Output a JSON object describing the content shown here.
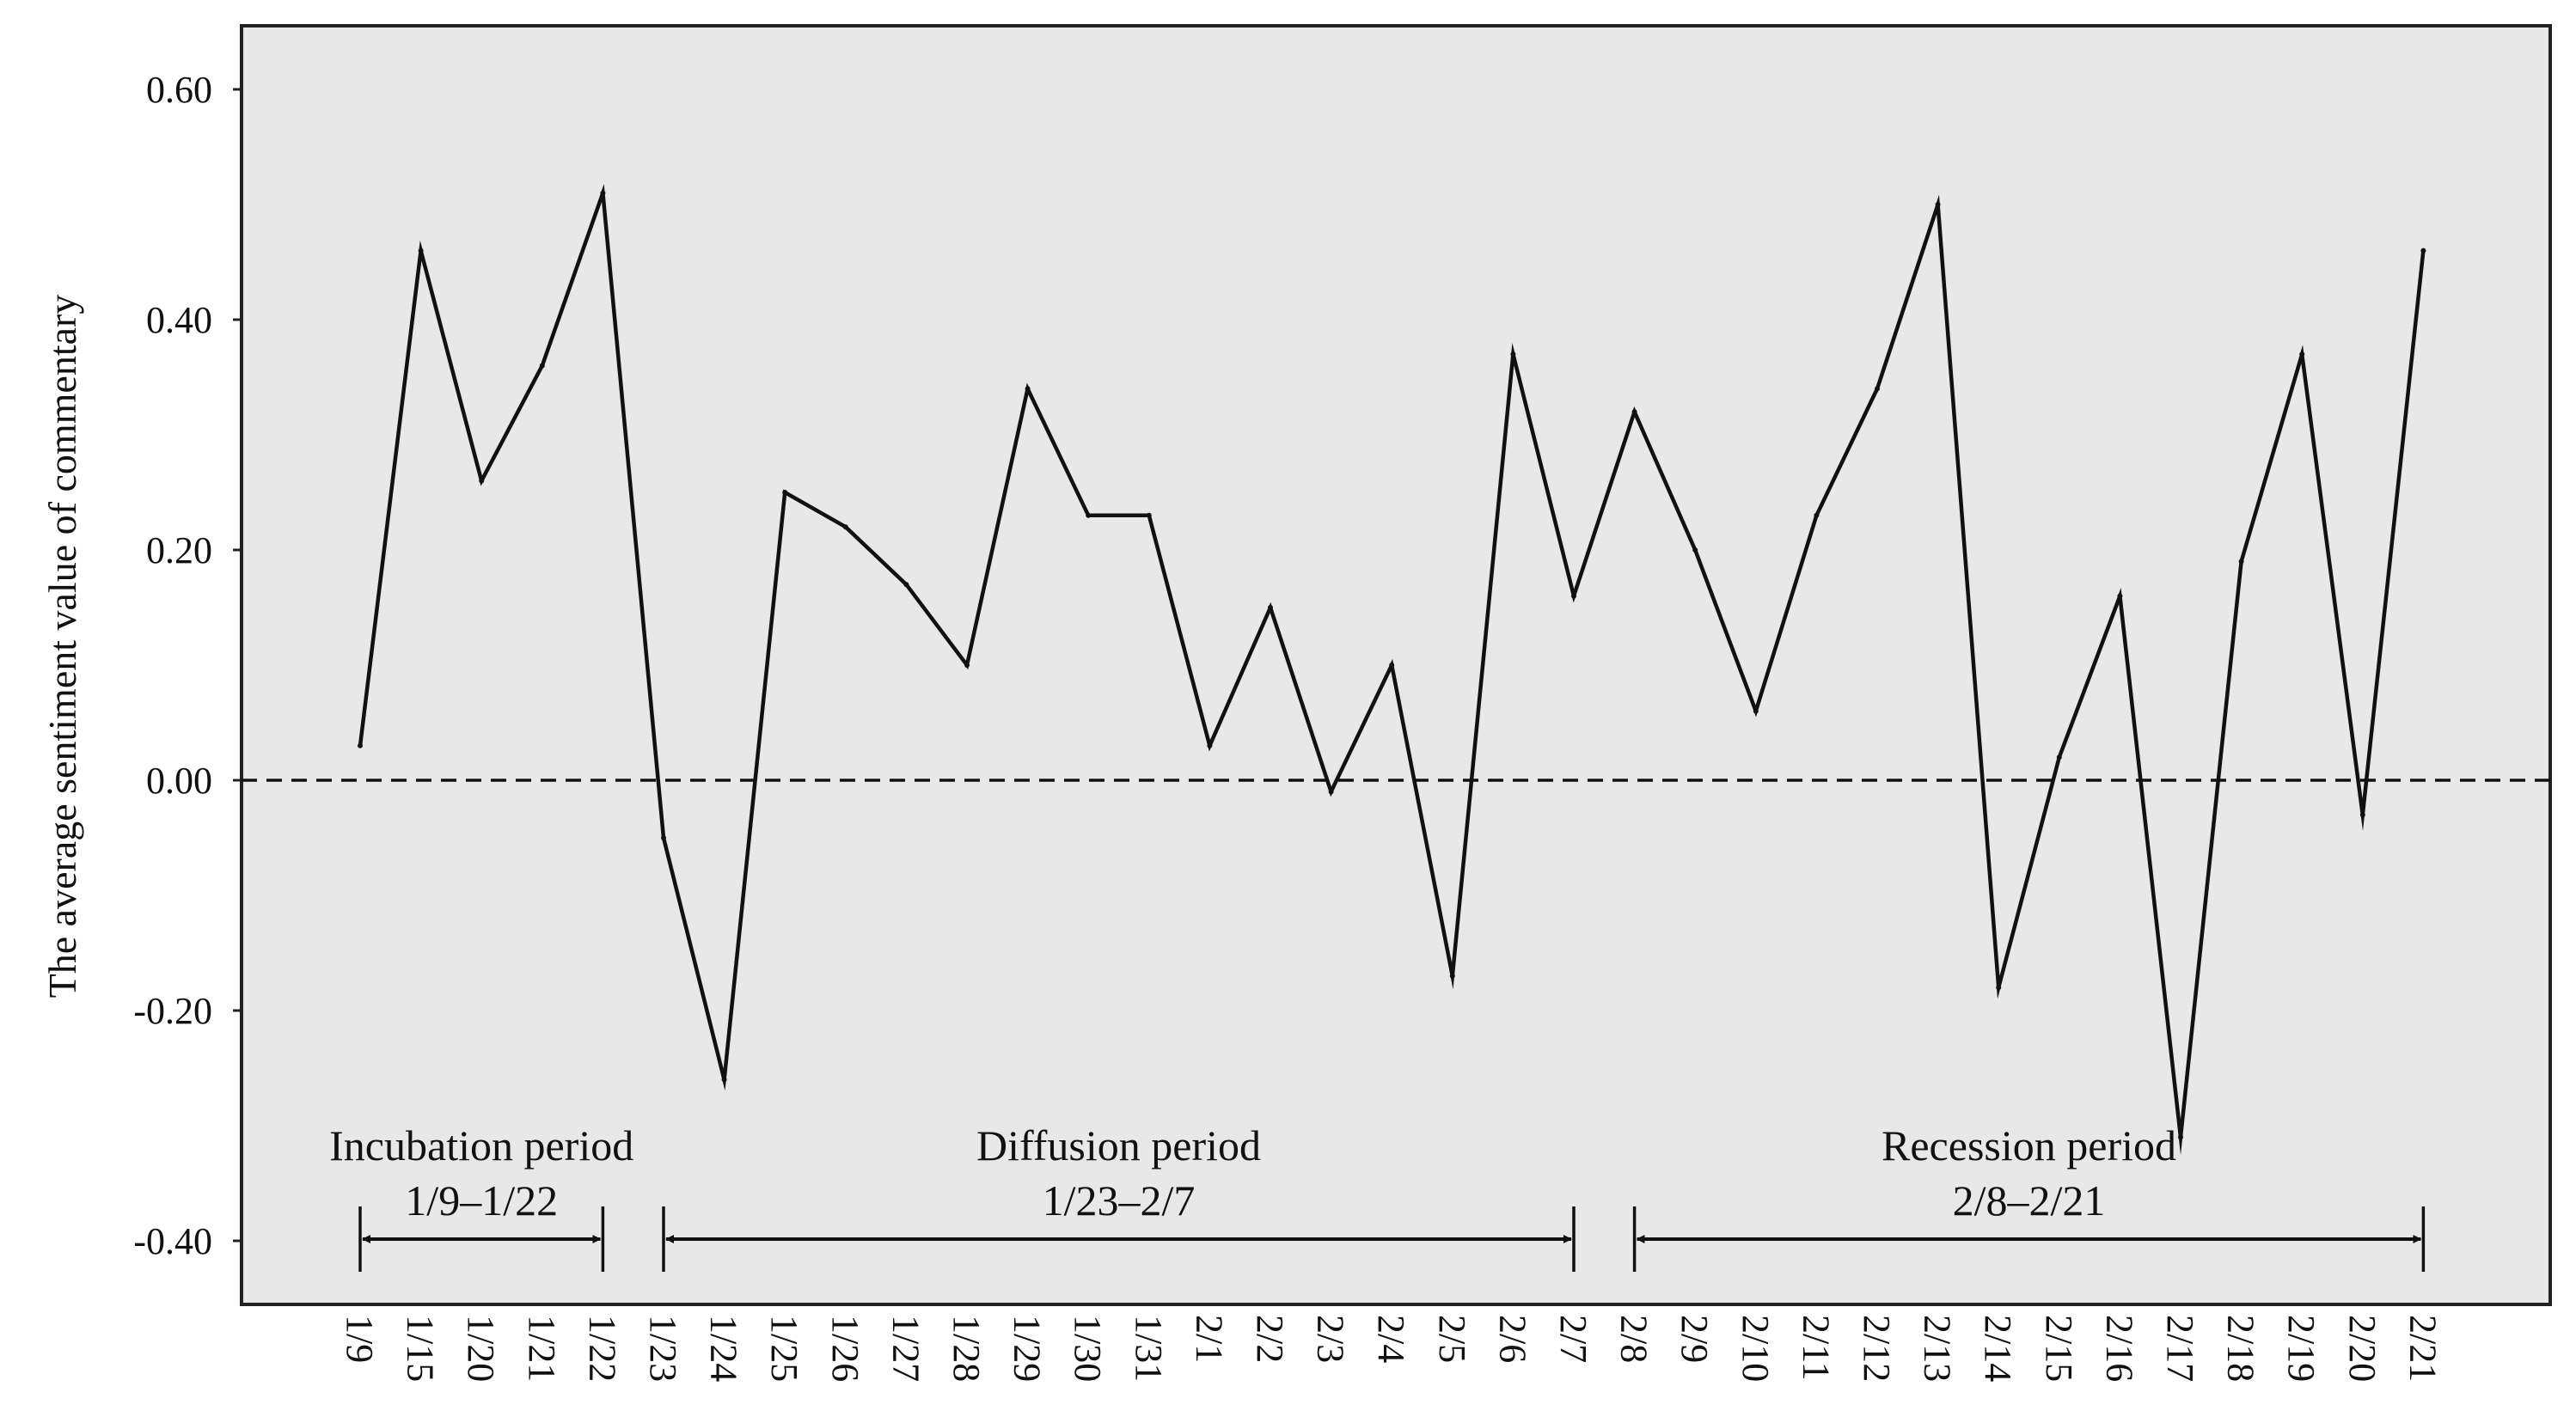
{
  "chart_data": {
    "type": "line",
    "title": "",
    "xlabel": "",
    "ylabel": "The average sentiment value of commentary",
    "ylim": [
      -0.45,
      0.65
    ],
    "yticks": [
      0.6,
      0.4,
      0.2,
      0.0,
      -0.2,
      -0.4
    ],
    "ytick_labels": [
      "0.60",
      "0.40",
      "0.20",
      "0.00",
      "-0.20",
      "-0.40"
    ],
    "reference_line": {
      "y": 0.0,
      "style": "dashed"
    },
    "categories": [
      "1/9",
      "1/15",
      "1/20",
      "1/21",
      "1/22",
      "1/23",
      "1/24",
      "1/25",
      "1/26",
      "1/27",
      "1/28",
      "1/29",
      "1/30",
      "1/31",
      "2/1",
      "2/2",
      "2/3",
      "2/4",
      "2/5",
      "2/6",
      "2/7",
      "2/8",
      "2/9",
      "2/10",
      "2/11",
      "2/12",
      "2/13",
      "2/14",
      "2/15",
      "2/16",
      "2/17",
      "2/18",
      "2/19",
      "2/20",
      "2/21"
    ],
    "series": [
      {
        "name": "Average sentiment value",
        "values": [
          0.03,
          0.46,
          0.26,
          0.36,
          0.51,
          -0.05,
          -0.26,
          0.25,
          0.22,
          0.17,
          0.1,
          0.34,
          0.23,
          0.23,
          0.03,
          0.15,
          -0.01,
          0.1,
          -0.17,
          0.37,
          0.16,
          0.32,
          0.2,
          0.06,
          0.23,
          0.34,
          0.5,
          -0.18,
          0.02,
          0.16,
          -0.31,
          0.19,
          0.37,
          -0.03,
          0.46
        ]
      }
    ],
    "background": "#e8e8e8",
    "line_color": "#111111",
    "periods": [
      {
        "name": "Incubation period",
        "range": "1/9–1/22",
        "start": "1/9",
        "end": "1/22"
      },
      {
        "name": "Diffusion period",
        "range": "1/23–2/7",
        "start": "1/23",
        "end": "2/7"
      },
      {
        "name": "Recession period",
        "range": "2/8–2/21",
        "start": "2/8",
        "end": "2/21"
      }
    ]
  }
}
